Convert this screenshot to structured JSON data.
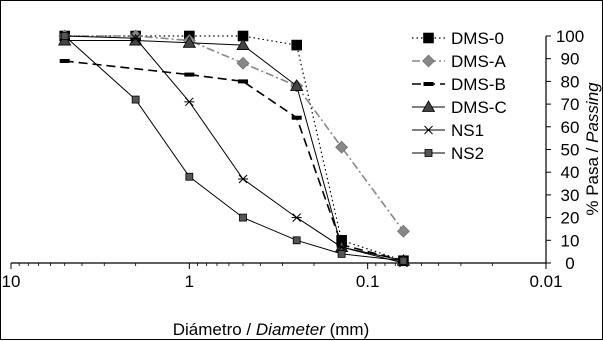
{
  "chart_data": {
    "type": "line",
    "x_scale": "log",
    "x_reversed": true,
    "xlim": [
      10,
      0.01
    ],
    "ylim": [
      0,
      100
    ],
    "x_ticks": [
      "10",
      "1",
      "0.1",
      "0.01"
    ],
    "y_ticks": [
      "0",
      "10",
      "20",
      "30",
      "40",
      "50",
      "60",
      "70",
      "80",
      "90",
      "100"
    ],
    "xlabel_plain": "Diámetro / ",
    "xlabel_italic": "Diameter",
    "xlabel_unit": " (mm)",
    "ylabel_plain": "% Pasa / ",
    "ylabel_italic": "Passing",
    "y_axis_position": "right",
    "grid": false,
    "legend_position": "top-right",
    "series": [
      {
        "name": "DMS-0",
        "color": "#000000",
        "marker": "square",
        "line": "dotted",
        "points": [
          [
            5,
            100
          ],
          [
            2,
            100
          ],
          [
            1,
            100
          ],
          [
            0.5,
            100
          ],
          [
            0.25,
            96
          ],
          [
            0.14,
            10
          ],
          [
            0.063,
            1
          ]
        ]
      },
      {
        "name": "DMS-A",
        "color": "#888888",
        "marker": "diamond",
        "line": "dashdot",
        "points": [
          [
            5,
            100
          ],
          [
            2,
            100
          ],
          [
            1,
            98
          ],
          [
            0.5,
            88
          ],
          [
            0.25,
            78
          ],
          [
            0.14,
            51
          ],
          [
            0.063,
            14
          ]
        ]
      },
      {
        "name": "DMS-B",
        "color": "#000000",
        "marker": "dash",
        "line": "dashed",
        "points": [
          [
            5,
            89
          ],
          [
            1,
            83
          ],
          [
            0.5,
            80
          ],
          [
            0.25,
            64
          ],
          [
            0.14,
            8
          ],
          [
            0.063,
            1
          ]
        ]
      },
      {
        "name": "DMS-C",
        "color": "#000000",
        "marker": "triangle",
        "line": "solid",
        "points": [
          [
            5,
            98
          ],
          [
            2,
            98
          ],
          [
            1,
            97
          ],
          [
            0.5,
            96
          ],
          [
            0.25,
            78
          ],
          [
            0.14,
            7
          ],
          [
            0.063,
            1
          ]
        ]
      },
      {
        "name": "NS1",
        "color": "#000000",
        "marker": "star",
        "line": "solid",
        "points": [
          [
            5,
            100
          ],
          [
            2,
            99
          ],
          [
            1,
            71
          ],
          [
            0.5,
            37
          ],
          [
            0.25,
            20
          ],
          [
            0.14,
            7
          ],
          [
            0.063,
            0
          ]
        ]
      },
      {
        "name": "NS2",
        "color": "#000000",
        "marker": "square-small",
        "line": "solid",
        "points": [
          [
            5,
            100
          ],
          [
            2,
            72
          ],
          [
            1,
            38
          ],
          [
            0.5,
            20
          ],
          [
            0.25,
            10
          ],
          [
            0.14,
            4
          ],
          [
            0.063,
            1
          ]
        ]
      }
    ]
  }
}
